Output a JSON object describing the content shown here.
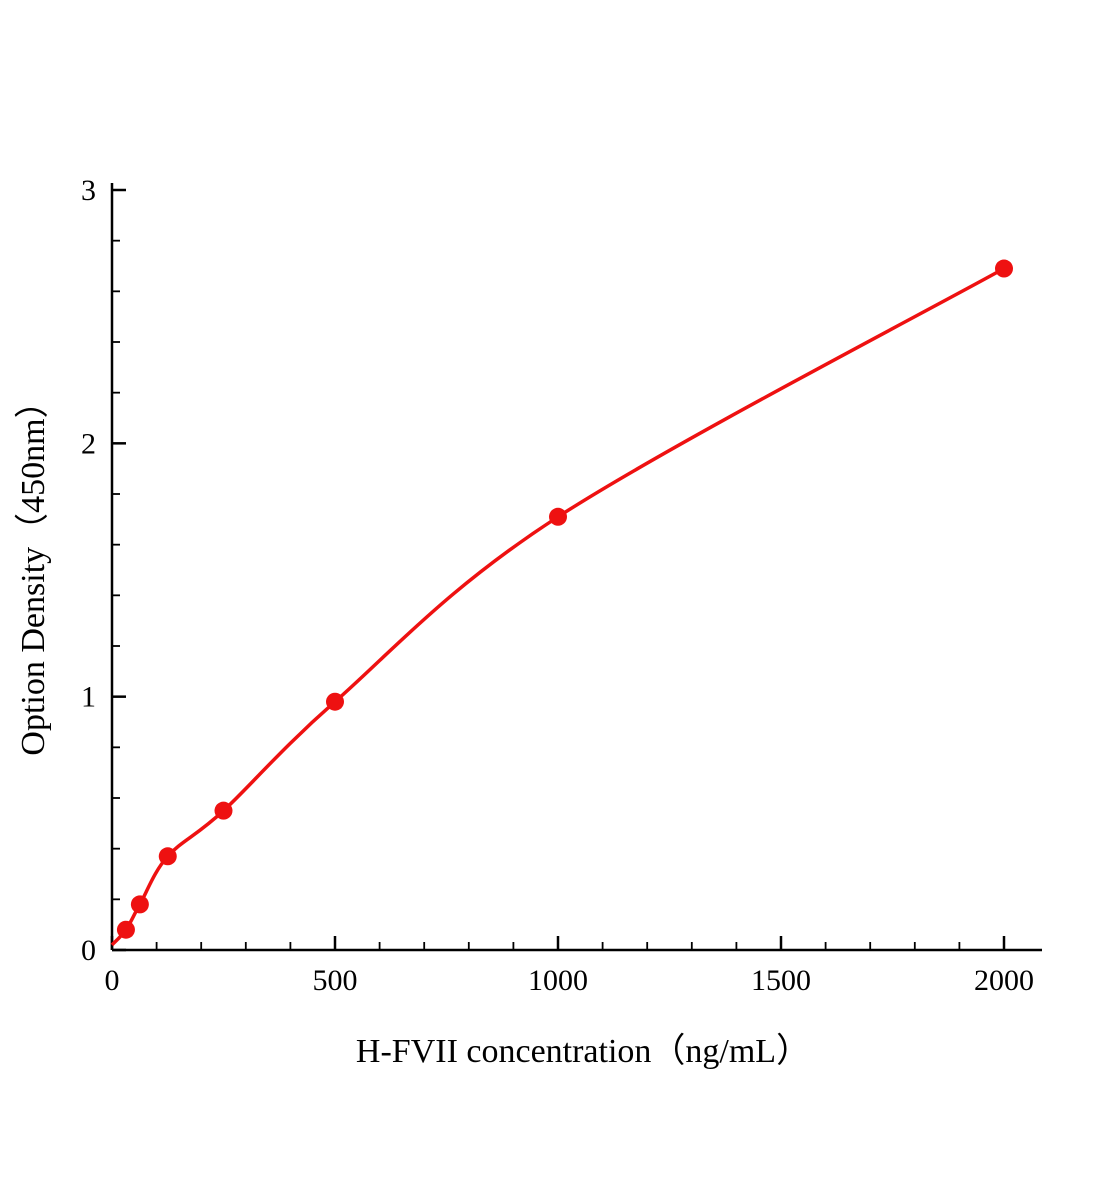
{
  "figure": {
    "background": "#ffffff",
    "axis_color": "#000000",
    "accent_color": "#ee1111"
  },
  "chart_data": {
    "type": "line",
    "title": "",
    "xlabel": "H-FVII concentration（ng/mL）",
    "ylabel": "Option Density（450nm）",
    "xlim": [
      0,
      2000
    ],
    "ylim": [
      0,
      3
    ],
    "x_ticks": [
      0,
      500,
      1000,
      1500,
      2000
    ],
    "y_ticks": [
      0,
      1,
      2,
      3
    ],
    "x_minor_step": 100,
    "y_minor_step": 0.2,
    "grid": false,
    "legend": false,
    "line_color": "#ee1111",
    "marker_color": "#ee1111",
    "curve_start": [
      0,
      0.02
    ],
    "x": [
      31.25,
      62.5,
      125,
      250,
      500,
      1000,
      2000
    ],
    "y": [
      0.08,
      0.18,
      0.37,
      0.55,
      0.98,
      1.71,
      2.69
    ]
  }
}
